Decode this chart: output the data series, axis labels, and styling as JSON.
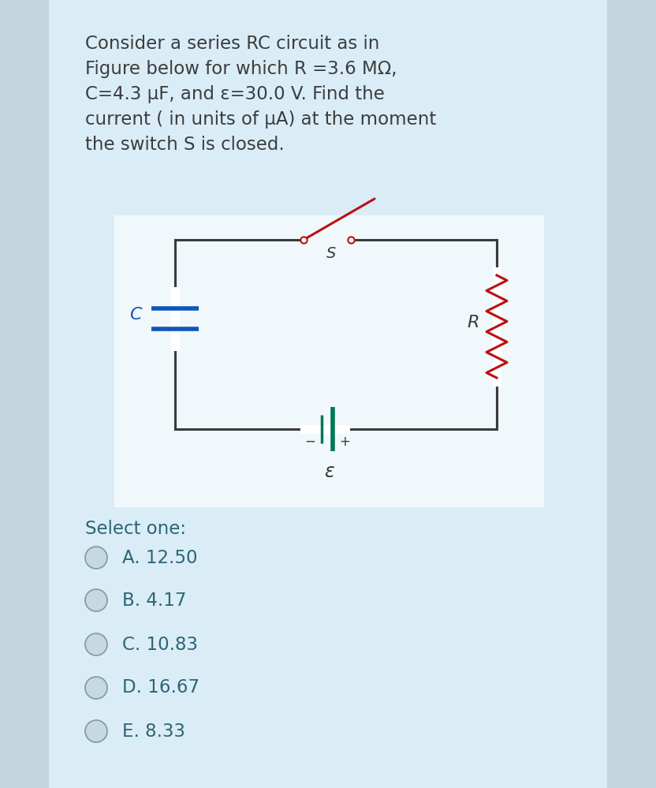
{
  "bg_color": "#cde4ef",
  "panel_color": "#daedf7",
  "circuit_bg": "#f0f8fc",
  "title_text": "Consider a series RC circuit as in\nFigure below for which R =3.6 MΩ,\nC=4.3 μF, and ε=30.0 V. Find the\ncurrent ( in units of μA) at the moment\nthe switch S is closed.",
  "title_color": "#3d3d3d",
  "title_fontsize": 16.5,
  "select_text": "Select one:",
  "options": [
    "A. 12.50",
    "B. 4.17",
    "C. 10.83",
    "D. 16.67",
    "E. 8.33"
  ],
  "option_color": "#2d6575",
  "option_fontsize": 16.5,
  "circuit_color": "#3a3a3a",
  "resistor_color": "#bb1111",
  "capacitor_color": "#1155bb",
  "switch_color": "#bb1111",
  "battery_color": "#007755",
  "label_C_color": "#1155bb",
  "label_R_color": "#3a3a3a",
  "label_S_color": "#3a3a3a",
  "label_eps_color": "#3a3a3a",
  "radio_fill": "#c8d8e0",
  "radio_edge": "#7a9aaa"
}
